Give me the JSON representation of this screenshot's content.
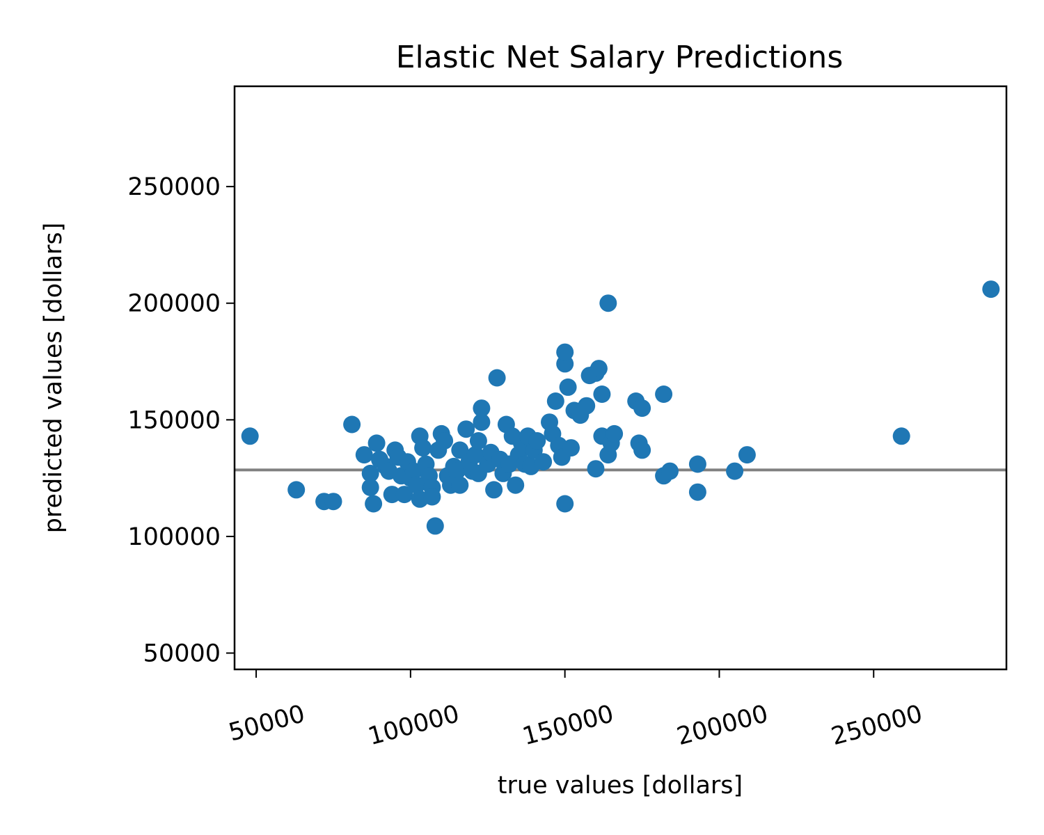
{
  "chart_data": {
    "type": "scatter",
    "title": "Elastic Net Salary Predictions",
    "xlabel": "true values [dollars]",
    "ylabel": "predicted values [dollars]",
    "xlim": [
      43000,
      293000
    ],
    "ylim": [
      43000,
      293000
    ],
    "xticks": [
      50000,
      100000,
      150000,
      200000,
      250000
    ],
    "yticks": [
      50000,
      100000,
      150000,
      200000,
      250000
    ],
    "xtick_labels": [
      "50000",
      "100000",
      "150000",
      "200000",
      "250000"
    ],
    "ytick_labels": [
      "50000",
      "100000",
      "150000",
      "200000",
      "250000"
    ],
    "grid": false,
    "reference_line_y": 128500,
    "point_color": "#1f77b4",
    "line_color": "#808080",
    "points": [
      [
        48000,
        143000
      ],
      [
        63000,
        120000
      ],
      [
        72000,
        115000
      ],
      [
        75000,
        115000
      ],
      [
        81000,
        148000
      ],
      [
        85000,
        135000
      ],
      [
        87000,
        127000
      ],
      [
        87000,
        121000
      ],
      [
        88000,
        114000
      ],
      [
        89000,
        140000
      ],
      [
        90000,
        133000
      ],
      [
        92000,
        130000
      ],
      [
        93000,
        128000
      ],
      [
        94000,
        118000
      ],
      [
        95000,
        137000
      ],
      [
        96000,
        134000
      ],
      [
        97000,
        126000
      ],
      [
        98000,
        118000
      ],
      [
        99000,
        132000
      ],
      [
        100000,
        125000
      ],
      [
        101000,
        128000
      ],
      [
        102000,
        122000
      ],
      [
        103000,
        143000
      ],
      [
        103000,
        116000
      ],
      [
        104000,
        138000
      ],
      [
        105000,
        131000
      ],
      [
        106000,
        126000
      ],
      [
        107000,
        121000
      ],
      [
        107000,
        117000
      ],
      [
        108000,
        104500
      ],
      [
        109000,
        137000
      ],
      [
        110000,
        144000
      ],
      [
        111000,
        141000
      ],
      [
        112000,
        126000
      ],
      [
        113000,
        122000
      ],
      [
        114000,
        130000
      ],
      [
        115000,
        128000
      ],
      [
        116000,
        137000
      ],
      [
        116000,
        122000
      ],
      [
        118000,
        146000
      ],
      [
        119000,
        132000
      ],
      [
        120000,
        128000
      ],
      [
        121000,
        135000
      ],
      [
        122000,
        141000
      ],
      [
        122000,
        127000
      ],
      [
        123000,
        149000
      ],
      [
        123000,
        155000
      ],
      [
        125000,
        131000
      ],
      [
        126000,
        136000
      ],
      [
        127000,
        120000
      ],
      [
        128000,
        168000
      ],
      [
        129000,
        133000
      ],
      [
        130000,
        127000
      ],
      [
        131000,
        148000
      ],
      [
        132000,
        131000
      ],
      [
        133000,
        143000
      ],
      [
        134000,
        122000
      ],
      [
        135000,
        135000
      ],
      [
        136000,
        140000
      ],
      [
        137000,
        131000
      ],
      [
        138000,
        143000
      ],
      [
        139000,
        130000
      ],
      [
        140000,
        137000
      ],
      [
        141000,
        141000
      ],
      [
        143000,
        132000
      ],
      [
        145000,
        149000
      ],
      [
        146000,
        144000
      ],
      [
        147000,
        158000
      ],
      [
        148000,
        139000
      ],
      [
        149000,
        134000
      ],
      [
        150000,
        174000
      ],
      [
        150000,
        179000
      ],
      [
        150000,
        114000
      ],
      [
        151000,
        164000
      ],
      [
        152000,
        138000
      ],
      [
        153000,
        154000
      ],
      [
        155000,
        152000
      ],
      [
        157000,
        156000
      ],
      [
        158000,
        169000
      ],
      [
        160000,
        170000
      ],
      [
        160000,
        129000
      ],
      [
        161000,
        172000
      ],
      [
        162000,
        143000
      ],
      [
        162000,
        161000
      ],
      [
        164000,
        135000
      ],
      [
        164000,
        200000
      ],
      [
        165000,
        140000
      ],
      [
        166000,
        144000
      ],
      [
        173000,
        158000
      ],
      [
        174000,
        140000
      ],
      [
        175000,
        155000
      ],
      [
        175000,
        137000
      ],
      [
        182000,
        126000
      ],
      [
        182000,
        161000
      ],
      [
        184000,
        128000
      ],
      [
        193000,
        131000
      ],
      [
        193000,
        119000
      ],
      [
        205000,
        128000
      ],
      [
        209000,
        135000
      ],
      [
        259000,
        143000
      ],
      [
        288000,
        206000
      ]
    ]
  }
}
